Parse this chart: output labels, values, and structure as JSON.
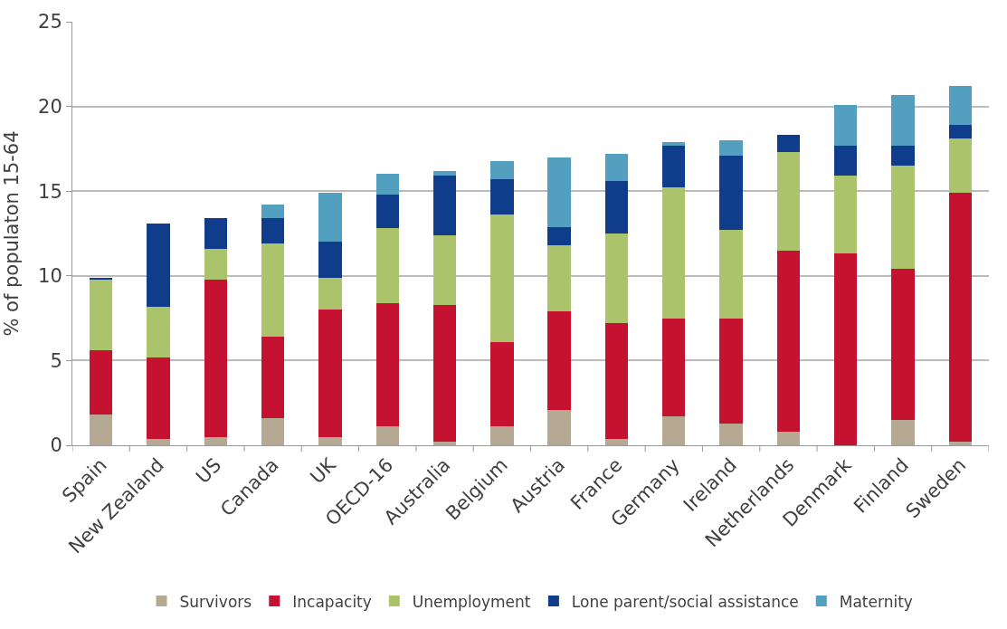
{
  "chart_data": {
    "type": "bar",
    "stacked": true,
    "ylabel": "% of populaton 15-64",
    "categories": [
      "Spain",
      "New Zealand",
      "US",
      "Canada",
      "UK",
      "OECD-16",
      "Australia",
      "Belgium",
      "Austria",
      "France",
      "Germany",
      "Ireland",
      "Netherlands",
      "Denmark",
      "Finland",
      "Sweden"
    ],
    "series": [
      {
        "name": "Survivors",
        "color": "#b5a993",
        "values": [
          1.8,
          0.4,
          0.5,
          1.6,
          0.5,
          1.1,
          0.2,
          1.1,
          2.1,
          0.4,
          1.7,
          1.3,
          0.8,
          0,
          1.5,
          0.2
        ]
      },
      {
        "name": "Incapacity",
        "color": "#c41230",
        "values": [
          3.8,
          4.8,
          9.3,
          4.8,
          7.5,
          7.3,
          8.1,
          5.0,
          5.8,
          6.8,
          5.8,
          6.2,
          10.7,
          11.3,
          8.9,
          14.7
        ]
      },
      {
        "name": "Unemployment",
        "color": "#abc46b",
        "values": [
          4.2,
          3.0,
          1.8,
          5.5,
          1.9,
          4.4,
          4.1,
          7.5,
          3.9,
          5.3,
          7.7,
          5.2,
          5.8,
          4.6,
          6.1,
          3.2
        ]
      },
      {
        "name": "Lone parent/social assistance",
        "color": "#103d8b",
        "values": [
          0.1,
          4.9,
          1.8,
          1.5,
          2.1,
          2.0,
          3.5,
          2.1,
          1.1,
          3.1,
          2.5,
          4.4,
          1.0,
          1.8,
          1.2,
          0.8
        ]
      },
      {
        "name": "Maternity",
        "color": "#539fc0",
        "values": [
          0,
          0,
          0,
          0.8,
          2.9,
          1.2,
          0.3,
          1.1,
          4.1,
          1.6,
          0.2,
          0.9,
          0,
          2.4,
          3.0,
          2.3
        ]
      }
    ],
    "ylim": [
      0,
      25
    ],
    "yticks": [
      0,
      5,
      10,
      15,
      20,
      25
    ],
    "grid": "y",
    "legend": "bottom"
  }
}
